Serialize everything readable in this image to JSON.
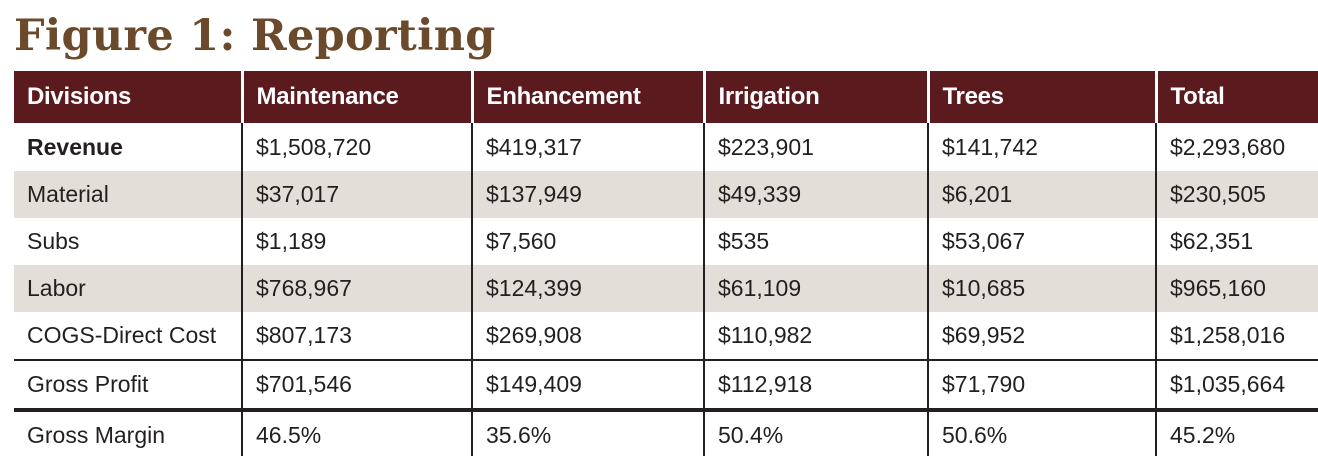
{
  "figure": {
    "title": "Figure 1: Reporting"
  },
  "colors": {
    "title": "#6b4a2b",
    "header_bg": "#5a1a1e",
    "header_text": "#ffffff",
    "shaded_row": "#e3ded8",
    "rule": "#231f20"
  },
  "table": {
    "headers": [
      "Divisions",
      "Maintenance",
      "Enhancement",
      "Irrigation",
      "Trees",
      "Total"
    ],
    "rows": [
      {
        "label": "Revenue",
        "values": [
          "$1,508,720",
          "$419,317",
          "$223,901",
          "$141,742",
          "$2,293,680"
        ]
      },
      {
        "label": "Material",
        "values": [
          "$37,017",
          "$137,949",
          "$49,339",
          "$6,201",
          "$230,505"
        ]
      },
      {
        "label": "Subs",
        "values": [
          "$1,189",
          "$7,560",
          "$535",
          "$53,067",
          "$62,351"
        ]
      },
      {
        "label": "Labor",
        "values": [
          "$768,967",
          "$124,399",
          "$61,109",
          "$10,685",
          "$965,160"
        ]
      },
      {
        "label": "COGS-Direct Cost",
        "values": [
          "$807,173",
          "$269,908",
          "$110,982",
          "$69,952",
          "$1,258,016"
        ]
      },
      {
        "label": "Gross Profit",
        "values": [
          "$701,546",
          "$149,409",
          "$112,918",
          "$71,790",
          "$1,035,664"
        ]
      },
      {
        "label": "Gross Margin",
        "values": [
          "46.5%",
          "35.6%",
          "50.4%",
          "50.6%",
          "45.2%"
        ]
      }
    ]
  }
}
